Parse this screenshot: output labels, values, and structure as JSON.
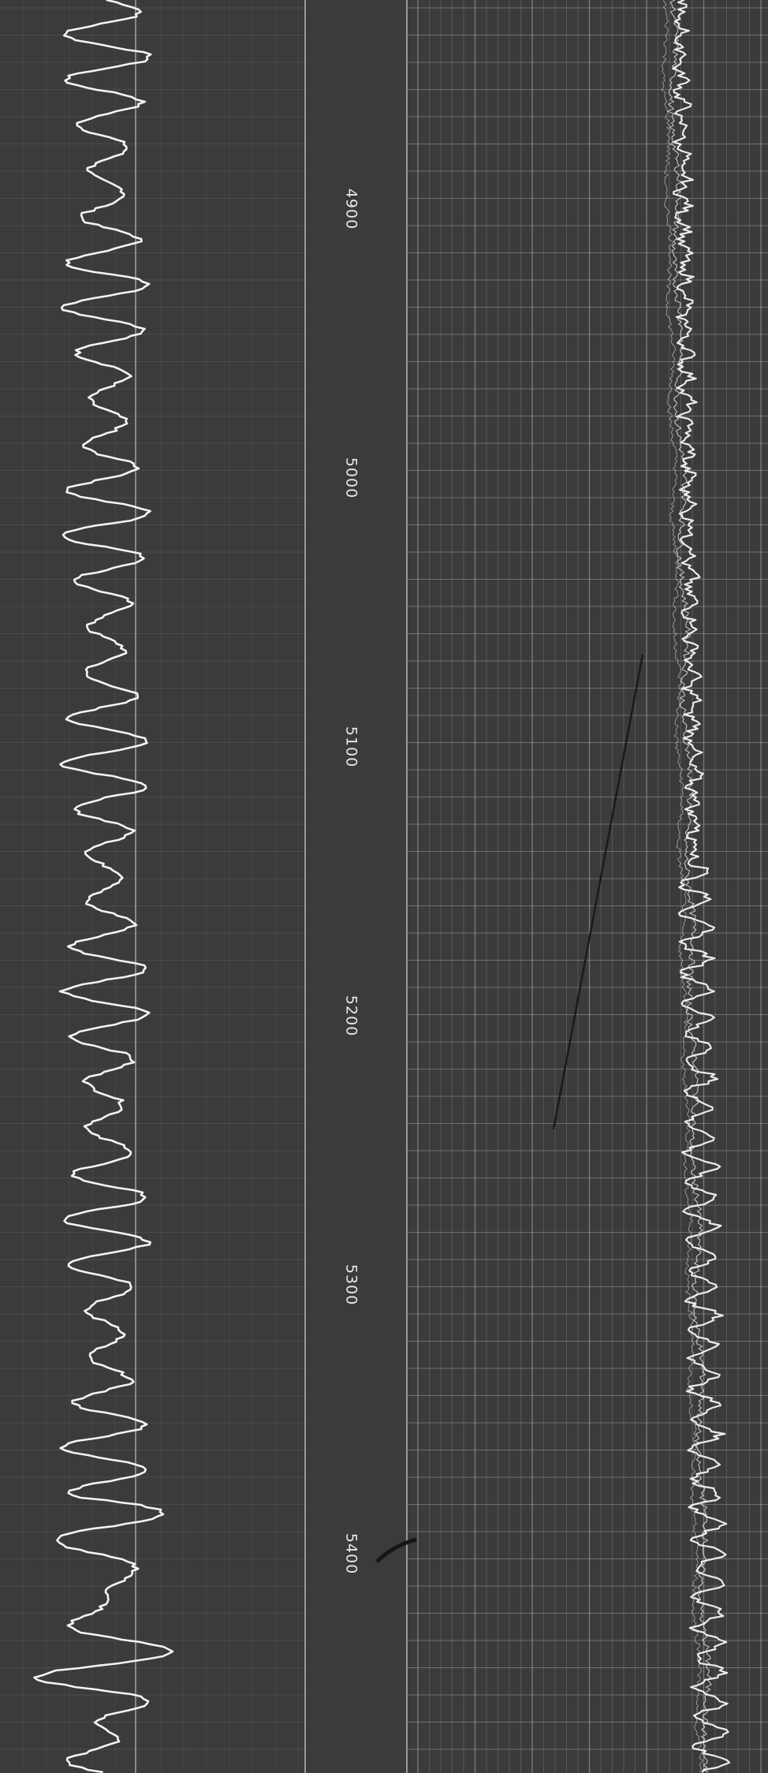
{
  "scale": {
    "ticks": [
      4900,
      5000,
      5100,
      5200,
      5300,
      5400
    ]
  }
}
